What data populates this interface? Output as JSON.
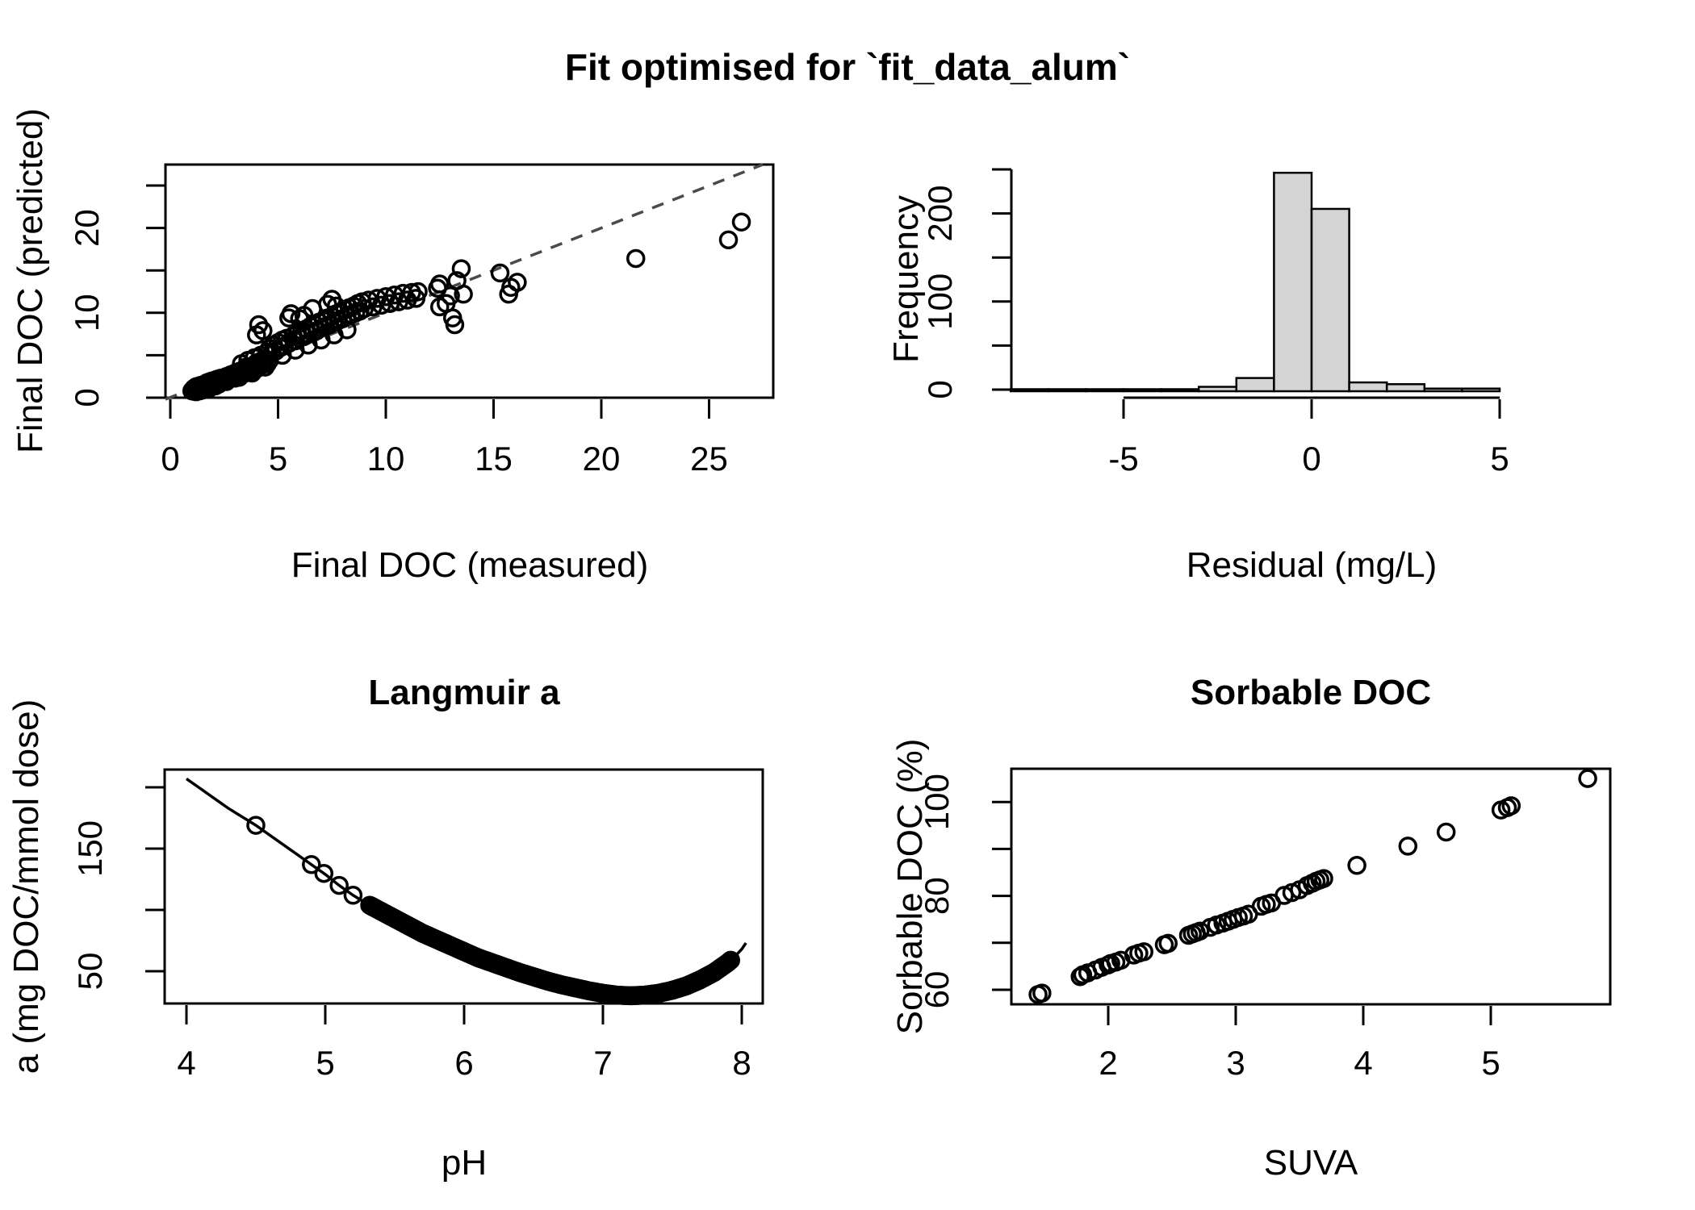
{
  "page": {
    "title": "Fit optimised for `fit_data_alum`"
  },
  "chart_data": [
    {
      "id": "fit_scatter",
      "type": "scatter",
      "title": "",
      "xlabel": "Final DOC (measured)",
      "ylabel": "Final DOC (predicted)",
      "xlim": [
        -0.3,
        28.0
      ],
      "ylim": [
        -0.3,
        27.5
      ],
      "xticks": [
        0,
        5,
        10,
        15,
        20,
        25
      ],
      "xtick_labels": [
        "0",
        "5",
        "10",
        "15",
        "20",
        "25"
      ],
      "yticks": [
        0,
        5,
        10,
        15,
        20,
        25
      ],
      "ytick_labels": [
        "0",
        "",
        "10",
        "",
        "20",
        ""
      ],
      "grid": false,
      "one_to_one_line": {
        "show": true,
        "style": "dashed",
        "color": "#4a4a4a"
      },
      "points": [
        [
          1.0,
          0.8
        ],
        [
          1.05,
          0.95
        ],
        [
          1.1,
          0.75
        ],
        [
          1.1,
          1.1
        ],
        [
          1.15,
          0.9
        ],
        [
          1.2,
          1.0
        ],
        [
          1.2,
          1.3
        ],
        [
          1.25,
          0.85
        ],
        [
          1.25,
          1.15
        ],
        [
          1.3,
          1.0
        ],
        [
          1.3,
          1.35
        ],
        [
          1.35,
          1.2
        ],
        [
          1.4,
          1.05
        ],
        [
          1.4,
          1.45
        ],
        [
          1.45,
          1.25
        ],
        [
          1.5,
          1.1
        ],
        [
          1.5,
          1.5
        ],
        [
          1.55,
          1.3
        ],
        [
          1.6,
          1.2
        ],
        [
          1.6,
          1.6
        ],
        [
          1.65,
          1.4
        ],
        [
          1.7,
          1.3
        ],
        [
          1.7,
          1.75
        ],
        [
          1.75,
          1.5
        ],
        [
          1.8,
          1.4
        ],
        [
          1.8,
          1.85
        ],
        [
          1.85,
          1.6
        ],
        [
          1.9,
          1.5
        ],
        [
          1.9,
          1.95
        ],
        [
          1.95,
          1.7
        ],
        [
          2.0,
          1.6
        ],
        [
          2.0,
          2.0
        ],
        [
          2.05,
          1.8
        ],
        [
          2.1,
          1.7
        ],
        [
          2.1,
          2.1
        ],
        [
          2.15,
          1.9
        ],
        [
          2.2,
          1.8
        ],
        [
          2.2,
          2.2
        ],
        [
          2.3,
          2.0
        ],
        [
          2.35,
          2.3
        ],
        [
          1.2,
          0.7
        ],
        [
          1.5,
          0.9
        ],
        [
          1.8,
          1.1
        ],
        [
          2.1,
          1.4
        ],
        [
          2.4,
          1.9
        ],
        [
          1.35,
          0.8
        ],
        [
          1.65,
          1.0
        ],
        [
          1.95,
          1.3
        ],
        [
          2.25,
          1.6
        ],
        [
          2.5,
          2.1
        ],
        [
          2.6,
          2.5
        ],
        [
          2.7,
          2.2
        ],
        [
          2.8,
          2.7
        ],
        [
          2.9,
          2.4
        ],
        [
          3.0,
          2.9
        ],
        [
          3.0,
          2.3
        ],
        [
          3.1,
          2.6
        ],
        [
          3.2,
          3.1
        ],
        [
          3.3,
          2.8
        ],
        [
          3.4,
          3.3
        ],
        [
          3.5,
          2.9
        ],
        [
          3.5,
          3.6
        ],
        [
          3.6,
          3.1
        ],
        [
          3.7,
          3.5
        ],
        [
          3.8,
          3.2
        ],
        [
          3.9,
          3.8
        ],
        [
          4.0,
          3.4
        ],
        [
          4.0,
          4.1
        ],
        [
          4.1,
          3.7
        ],
        [
          4.2,
          4.3
        ],
        [
          4.3,
          3.9
        ],
        [
          4.4,
          4.5
        ],
        [
          4.5,
          4.0
        ],
        [
          2.6,
          1.9
        ],
        [
          3.2,
          2.4
        ],
        [
          3.8,
          2.9
        ],
        [
          4.4,
          3.6
        ],
        [
          3.3,
          4.0
        ],
        [
          3.6,
          4.4
        ],
        [
          3.9,
          4.7
        ],
        [
          4.2,
          5.0
        ],
        [
          4.5,
          5.4
        ],
        [
          4.0,
          7.4
        ],
        [
          4.1,
          8.6
        ],
        [
          4.3,
          7.9
        ],
        [
          4.6,
          5.8
        ],
        [
          4.7,
          5.2
        ],
        [
          4.8,
          6.2
        ],
        [
          4.9,
          5.5
        ],
        [
          5.0,
          6.5
        ],
        [
          5.1,
          5.9
        ],
        [
          5.2,
          6.8
        ],
        [
          5.3,
          6.1
        ],
        [
          5.4,
          7.0
        ],
        [
          5.5,
          6.4
        ],
        [
          5.5,
          9.4
        ],
        [
          5.6,
          9.9
        ],
        [
          5.7,
          7.3
        ],
        [
          5.8,
          6.7
        ],
        [
          5.9,
          7.6
        ],
        [
          6.0,
          7.0
        ],
        [
          6.0,
          9.3
        ],
        [
          6.1,
          7.9
        ],
        [
          6.2,
          7.2
        ],
        [
          6.2,
          9.7
        ],
        [
          6.3,
          8.1
        ],
        [
          6.4,
          7.5
        ],
        [
          6.5,
          8.4
        ],
        [
          6.6,
          7.7
        ],
        [
          6.6,
          10.5
        ],
        [
          6.7,
          8.6
        ],
        [
          6.8,
          7.9
        ],
        [
          6.9,
          8.9
        ],
        [
          7.0,
          8.2
        ],
        [
          7.1,
          9.1
        ],
        [
          7.2,
          8.4
        ],
        [
          7.3,
          11.0
        ],
        [
          7.3,
          9.4
        ],
        [
          7.4,
          8.6
        ],
        [
          7.5,
          9.6
        ],
        [
          7.5,
          11.6
        ],
        [
          7.6,
          8.9
        ],
        [
          7.7,
          9.9
        ],
        [
          7.7,
          10.8
        ],
        [
          7.8,
          9.1
        ],
        [
          7.9,
          10.1
        ],
        [
          8.0,
          9.3
        ],
        [
          8.1,
          10.4
        ],
        [
          8.2,
          9.6
        ],
        [
          8.3,
          10.6
        ],
        [
          8.4,
          9.8
        ],
        [
          8.5,
          10.8
        ],
        [
          8.6,
          10.0
        ],
        [
          8.7,
          11.1
        ],
        [
          8.8,
          10.2
        ],
        [
          8.9,
          11.3
        ],
        [
          9.0,
          10.5
        ],
        [
          9.2,
          11.5
        ],
        [
          9.4,
          10.7
        ],
        [
          9.6,
          11.7
        ],
        [
          9.8,
          10.9
        ],
        [
          10.0,
          11.9
        ],
        [
          10.2,
          11.1
        ],
        [
          10.4,
          12.1
        ],
        [
          10.6,
          11.3
        ],
        [
          10.8,
          12.3
        ],
        [
          11.0,
          11.5
        ],
        [
          11.2,
          12.4
        ],
        [
          11.4,
          11.7
        ],
        [
          11.5,
          12.5
        ],
        [
          4.6,
          4.4
        ],
        [
          5.2,
          5.0
        ],
        [
          5.8,
          5.6
        ],
        [
          6.4,
          6.2
        ],
        [
          7.0,
          6.8
        ],
        [
          7.6,
          7.4
        ],
        [
          8.2,
          8.0
        ],
        [
          12.4,
          12.9
        ],
        [
          12.5,
          13.4
        ],
        [
          12.5,
          10.7
        ],
        [
          12.8,
          11.1
        ],
        [
          13.0,
          12.0
        ],
        [
          13.1,
          9.4
        ],
        [
          13.2,
          8.6
        ],
        [
          13.3,
          13.8
        ],
        [
          13.5,
          15.2
        ],
        [
          13.6,
          12.2
        ],
        [
          15.3,
          14.7
        ],
        [
          15.7,
          12.2
        ],
        [
          15.8,
          13.0
        ],
        [
          16.1,
          13.6
        ],
        [
          21.6,
          16.4
        ],
        [
          25.9,
          18.6
        ],
        [
          26.5,
          20.7
        ]
      ]
    },
    {
      "id": "residual_hist",
      "type": "bar",
      "title": "",
      "xlabel": "Residual (mg/L)",
      "ylabel": "Frequency",
      "bin_start": -8,
      "bin_width": 1,
      "bin_edges": [
        -8,
        -7,
        -6,
        -5,
        -4,
        -3,
        -2,
        -1,
        0,
        1,
        2,
        3,
        4,
        5
      ],
      "counts": [
        1,
        1,
        2,
        1,
        1,
        5,
        15,
        248,
        207,
        10,
        8,
        3,
        3
      ],
      "xticks": [
        -5,
        0,
        5
      ],
      "xtick_labels": [
        "-5",
        "0",
        "5"
      ],
      "yticks": [
        0,
        50,
        100,
        150,
        200,
        250
      ],
      "ytick_labels": [
        "0",
        "",
        "100",
        "",
        "200",
        ""
      ],
      "ylim": [
        0,
        250
      ],
      "bar_fill": "#d4d4d4",
      "bar_stroke": "#000000"
    },
    {
      "id": "langmuir_a",
      "type": "line",
      "title": "Langmuir a",
      "xlabel": "pH",
      "ylabel": "a (mg DOC/mmol dose)",
      "xlim": [
        3.84,
        8.15
      ],
      "ylim": [
        23,
        214
      ],
      "xticks": [
        4,
        5,
        6,
        7,
        8
      ],
      "xtick_labels": [
        "4",
        "5",
        "6",
        "7",
        "8"
      ],
      "yticks": [
        50,
        100,
        150,
        200
      ],
      "ytick_labels": [
        "50",
        "",
        "150",
        ""
      ],
      "curve": [
        [
          4.0,
          207
        ],
        [
          4.1,
          199
        ],
        [
          4.2,
          191
        ],
        [
          4.3,
          183
        ],
        [
          4.4,
          176
        ],
        [
          4.5,
          169
        ],
        [
          4.6,
          161
        ],
        [
          4.7,
          153
        ],
        [
          4.8,
          145
        ],
        [
          4.9,
          137
        ],
        [
          5.0,
          129
        ],
        [
          5.1,
          120
        ],
        [
          5.2,
          112
        ],
        [
          5.3,
          105
        ],
        [
          5.4,
          99
        ],
        [
          5.5,
          93
        ],
        [
          5.6,
          87
        ],
        [
          5.7,
          81
        ],
        [
          5.8,
          76
        ],
        [
          5.9,
          71
        ],
        [
          6.0,
          66
        ],
        [
          6.1,
          61
        ],
        [
          6.2,
          57
        ],
        [
          6.3,
          53
        ],
        [
          6.4,
          49
        ],
        [
          6.5,
          45.5
        ],
        [
          6.6,
          42
        ],
        [
          6.7,
          39
        ],
        [
          6.8,
          36.5
        ],
        [
          6.9,
          34
        ],
        [
          7.0,
          32
        ],
        [
          7.1,
          30.5
        ],
        [
          7.2,
          30
        ],
        [
          7.3,
          30.5
        ],
        [
          7.4,
          32
        ],
        [
          7.5,
          34.5
        ],
        [
          7.6,
          38
        ],
        [
          7.7,
          43
        ],
        [
          7.8,
          49
        ],
        [
          7.9,
          57
        ],
        [
          7.95,
          62
        ],
        [
          8.0,
          68
        ],
        [
          8.03,
          73
        ]
      ],
      "marker_ph_sparse": [
        4.5,
        4.9,
        4.99,
        5.1,
        5.2
      ],
      "marker_ph_dense": {
        "from": 5.32,
        "to": 7.92,
        "step": 0.01
      }
    },
    {
      "id": "sorbable_doc",
      "type": "scatter",
      "title": "Sorbable DOC",
      "xlabel": "SUVA",
      "ylabel": "Sorbable DOC (%)",
      "xlim": [
        1.24,
        5.94
      ],
      "ylim": [
        57,
        107
      ],
      "xticks": [
        2,
        3,
        4,
        5
      ],
      "xtick_labels": [
        "2",
        "3",
        "4",
        "5"
      ],
      "yticks": [
        60,
        70,
        80,
        90,
        100
      ],
      "ytick_labels": [
        "60",
        "",
        "80",
        "",
        "100"
      ],
      "points": [
        [
          1.45,
          59.0
        ],
        [
          1.48,
          59.3
        ],
        [
          1.78,
          62.8
        ],
        [
          1.8,
          63.2
        ],
        [
          1.84,
          63.6
        ],
        [
          1.9,
          64.2
        ],
        [
          1.95,
          64.8
        ],
        [
          2.0,
          65.3
        ],
        [
          2.02,
          65.6
        ],
        [
          2.06,
          65.9
        ],
        [
          2.1,
          66.3
        ],
        [
          2.2,
          67.4
        ],
        [
          2.24,
          67.8
        ],
        [
          2.28,
          68.1
        ],
        [
          2.44,
          69.6
        ],
        [
          2.47,
          69.9
        ],
        [
          2.63,
          71.6
        ],
        [
          2.66,
          71.9
        ],
        [
          2.69,
          72.2
        ],
        [
          2.72,
          72.5
        ],
        [
          2.8,
          73.3
        ],
        [
          2.85,
          73.8
        ],
        [
          2.9,
          74.2
        ],
        [
          2.94,
          74.6
        ],
        [
          2.98,
          75.0
        ],
        [
          3.02,
          75.4
        ],
        [
          3.06,
          75.7
        ],
        [
          3.1,
          76.1
        ],
        [
          3.2,
          77.8
        ],
        [
          3.24,
          78.2
        ],
        [
          3.28,
          78.5
        ],
        [
          3.38,
          80.1
        ],
        [
          3.44,
          80.7
        ],
        [
          3.5,
          81.3
        ],
        [
          3.56,
          82.2
        ],
        [
          3.6,
          82.7
        ],
        [
          3.63,
          83.1
        ],
        [
          3.66,
          83.4
        ],
        [
          3.69,
          83.7
        ],
        [
          3.95,
          86.5
        ],
        [
          4.35,
          90.6
        ],
        [
          4.65,
          93.6
        ],
        [
          5.08,
          98.3
        ],
        [
          5.13,
          98.8
        ],
        [
          5.16,
          99.2
        ],
        [
          5.76,
          105.0
        ]
      ]
    }
  ]
}
